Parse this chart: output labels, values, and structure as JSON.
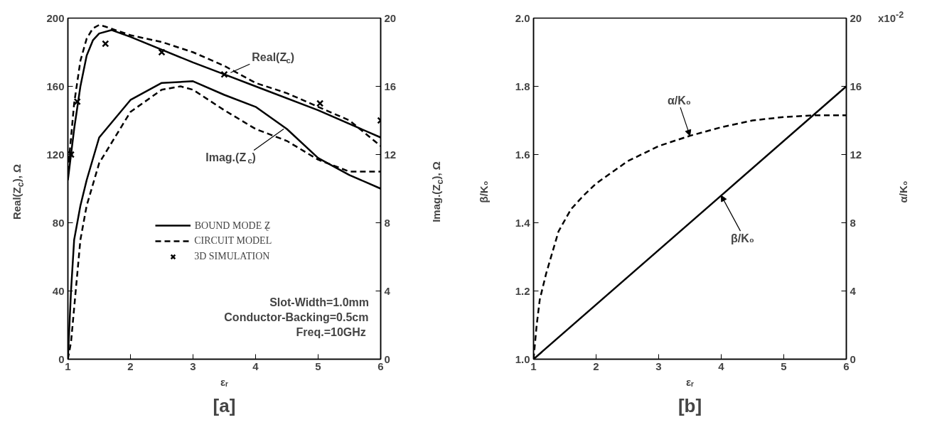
{
  "chart_data": [
    {
      "type": "line",
      "title": "[a]",
      "xlabel": "εᵣ",
      "ylabel": "Real(Z$_{c}$), Ω",
      "y2label": "Imag.(Z$_{c}$), Ω",
      "xlim": [
        1,
        6
      ],
      "xticks": [
        1,
        2,
        3,
        4,
        5,
        6
      ],
      "ylim": [
        0,
        200
      ],
      "yticks": [
        0,
        40,
        80,
        120,
        160,
        200
      ],
      "y2lim": [
        0,
        20
      ],
      "y2ticks": [
        0,
        4,
        8,
        12,
        16,
        20
      ],
      "grid": false,
      "legend": "center",
      "series": [
        {
          "name": "BOUND MODE Z$_{c}$",
          "color": "#000000",
          "line_style": "solid",
          "x": [
            1.0,
            1.1,
            1.2,
            1.3,
            1.4,
            1.5,
            1.7,
            2.0,
            3.0,
            3.5,
            4.0,
            5.0,
            6.0
          ],
          "values": [
            105,
            135,
            160,
            178,
            187,
            191,
            193,
            189,
            174,
            167,
            160,
            146,
            130
          ]
        },
        {
          "name": "CIRCUIT MODEL",
          "color": "#000000",
          "line_style": "dashed",
          "x": [
            1.0,
            1.1,
            1.2,
            1.3,
            1.4,
            1.5,
            1.6,
            2.0,
            2.5,
            3.0,
            3.5,
            4.0,
            4.5,
            5.0,
            5.5,
            6.0
          ],
          "values": [
            110,
            150,
            175,
            188,
            194,
            196,
            195,
            190,
            186,
            180,
            172,
            162,
            156,
            148,
            140,
            125
          ]
        },
        {
          "name": "3D SIMULATION",
          "type": "scatter",
          "marker": "cross",
          "color": "#000000",
          "x": [
            1.05,
            1.15,
            1.6,
            2.5,
            3.5,
            5.03,
            6.0
          ],
          "values": [
            120,
            151,
            185,
            180,
            167,
            150,
            140
          ]
        },
        {
          "color": "#000000",
          "line_style": "solid",
          "axis": "y2",
          "x": [
            1.0,
            1.05,
            1.1,
            1.2,
            1.3,
            1.5,
            2.0,
            2.5,
            3.0,
            3.5,
            4.0,
            4.5,
            5.0,
            5.5,
            6.0
          ],
          "values": [
            0,
            4,
            7,
            9,
            10.5,
            13,
            15.2,
            16.2,
            16.3,
            15.5,
            14.8,
            13.5,
            11.8,
            10.8,
            10
          ]
        },
        {
          "color": "#000000",
          "line_style": "dashed",
          "axis": "y2",
          "x": [
            1.0,
            1.05,
            1.1,
            1.2,
            1.3,
            1.5,
            2.0,
            2.5,
            2.8,
            3.0,
            3.5,
            4.0,
            4.5,
            5.0,
            5.5,
            6.0
          ],
          "values": [
            0,
            1,
            3,
            7,
            9,
            11.5,
            14.5,
            15.8,
            16,
            15.8,
            14.6,
            13.5,
            12.8,
            11.7,
            11,
            11
          ]
        }
      ],
      "annotations": [
        {
          "text": "Real(Z$_{c}$)",
          "x": 3.6,
          "y": 168
        },
        {
          "text": "Imag.(Z$_{c}$)",
          "x": 4.45,
          "y": 135
        },
        "Slot-Width=1.0mm",
        "Conductor-Backing=0.5cm",
        "Freq.=10GHz"
      ]
    },
    {
      "type": "line",
      "title": "[b]",
      "xlabel": "εᵣ",
      "ylabel": "β/K₀",
      "y2label": "α/K₀",
      "xlim": [
        1,
        6
      ],
      "xticks": [
        1,
        2,
        3,
        4,
        5,
        6
      ],
      "ylim": [
        1.0,
        2.0
      ],
      "yticks": [
        {
          "value": 1.0,
          "label": "1.0"
        },
        1.2,
        1.4,
        1.6,
        1.8,
        {
          "value": 2.0,
          "label": "2.0"
        }
      ],
      "y2lim": [
        0,
        20
      ],
      "y2ticks": [
        0,
        4,
        8,
        12,
        16,
        20
      ],
      "grid": false,
      "series": [
        {
          "color": "#000000",
          "line_style": "solid",
          "x": [
            1,
            6
          ],
          "values": [
            1.0,
            1.8
          ]
        },
        {
          "color": "#000000",
          "line_style": "dashed",
          "axis": "y2",
          "x": [
            1.0,
            1.05,
            1.1,
            1.2,
            1.4,
            1.6,
            1.8,
            2.0,
            2.5,
            3.0,
            3.5,
            4.0,
            4.5,
            5.0,
            5.5,
            6.0
          ],
          "values": [
            0,
            2,
            3.5,
            5,
            7.5,
            8.8,
            9.6,
            10.3,
            11.6,
            12.5,
            13.1,
            13.6,
            14,
            14.2,
            14.3,
            14.3
          ]
        }
      ],
      "annotations": [
        {
          "text": "α/K₀",
          "x": 3.5,
          "y": 1.655
        },
        {
          "text": "β/K₀",
          "x": 4.0,
          "y": 1.48
        },
        "x10$^{-2}$"
      ]
    }
  ]
}
